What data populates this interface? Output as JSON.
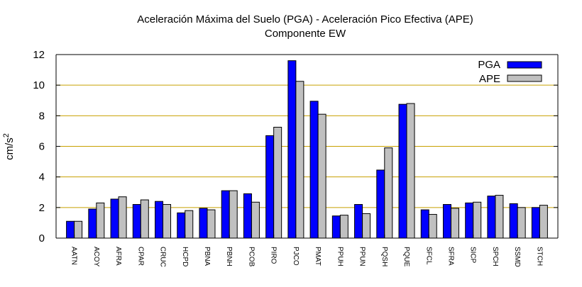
{
  "colors": {
    "pga": "#0000ff",
    "ape": "#c0c0c0",
    "grid": "#c8a000",
    "axis": "#000000"
  },
  "chart_data": {
    "type": "bar",
    "title": "Aceleración Máxima del Suelo (PGA) -  Aceleración Pico Efectiva (APE)",
    "subtitle": "Componente EW",
    "xlabel": "",
    "ylabel": "cm/s",
    "ylabel_superscript": "2",
    "ylim": [
      0,
      12
    ],
    "yticks": [
      "0",
      "2",
      "4",
      "6",
      "8",
      "10",
      "12"
    ],
    "grid": "horizontal",
    "legend_position": "top-right",
    "categories": [
      "AATN",
      "ACOY",
      "AFRA",
      "CPAR",
      "CRUC",
      "HCPD",
      "PBNA",
      "PBNH",
      "PCOB",
      "PIRO",
      "PJCO",
      "PMAT",
      "PPUH",
      "PPUN",
      "PQSH",
      "PQUE",
      "SFCL",
      "SFRA",
      "SICP",
      "SPCH",
      "SSMD",
      "STCH"
    ],
    "series": [
      {
        "name": "PGA",
        "values": [
          1.1,
          1.9,
          2.55,
          2.2,
          2.4,
          1.65,
          1.95,
          3.1,
          2.9,
          6.7,
          11.6,
          8.95,
          1.45,
          2.2,
          4.45,
          8.75,
          1.85,
          2.2,
          2.3,
          2.75,
          2.25,
          2.0
        ]
      },
      {
        "name": "APE",
        "values": [
          1.1,
          2.3,
          2.7,
          2.5,
          2.2,
          1.8,
          1.85,
          3.1,
          2.35,
          7.25,
          10.25,
          8.1,
          1.5,
          1.6,
          5.9,
          8.8,
          1.55,
          1.95,
          2.35,
          2.8,
          2.0,
          2.15
        ]
      }
    ]
  }
}
